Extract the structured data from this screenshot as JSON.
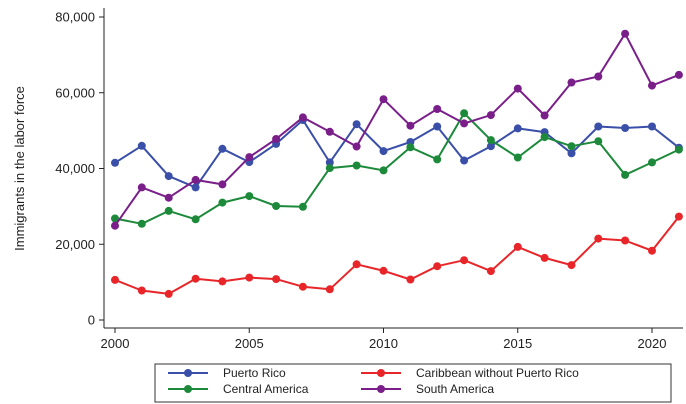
{
  "chart_data": {
    "type": "line",
    "title": "",
    "xlabel": "",
    "ylabel": "Immigrants in the labor force",
    "xlim": [
      2000,
      2021
    ],
    "ylim": [
      0,
      80000
    ],
    "x_ticks": [
      2000,
      2005,
      2010,
      2015,
      2020
    ],
    "x_tick_labels": [
      "2000",
      "2005",
      "2010",
      "2015",
      "2020"
    ],
    "y_ticks": [
      0,
      20000,
      40000,
      60000,
      80000
    ],
    "y_tick_labels": [
      "0",
      "20,000",
      "40,000",
      "60,000",
      "80,000"
    ],
    "grid": false,
    "legend_position": "bottom",
    "x": [
      2000,
      2001,
      2002,
      2003,
      2004,
      2005,
      2006,
      2007,
      2008,
      2009,
      2010,
      2011,
      2012,
      2013,
      2014,
      2015,
      2016,
      2017,
      2018,
      2019,
      2020,
      2021
    ],
    "series": [
      {
        "name": "Puerto Rico",
        "color": "#3a4fa8",
        "values": [
          41500,
          46000,
          38000,
          35000,
          45200,
          41700,
          46500,
          52800,
          41600,
          51700,
          44600,
          47000,
          51100,
          42100,
          45900,
          50600,
          49600,
          44000,
          51100,
          50700,
          51100,
          45500
        ]
      },
      {
        "name": "Caribbean without Puerto Rico",
        "color": "#e8262a",
        "values": [
          10600,
          7800,
          6900,
          10900,
          10200,
          11200,
          10800,
          8800,
          8100,
          14700,
          13000,
          10700,
          14200,
          15800,
          12900,
          19300,
          16400,
          14500,
          21500,
          21000,
          18300,
          27300
        ]
      },
      {
        "name": "Central America",
        "color": "#1c8a3a",
        "values": [
          26800,
          25400,
          28800,
          26600,
          31000,
          32700,
          30100,
          29900,
          40100,
          40800,
          39500,
          45600,
          42400,
          54600,
          47500,
          42900,
          48300,
          45900,
          47200,
          38300,
          41600,
          45000
        ]
      },
      {
        "name": "South America",
        "color": "#7a1f8a",
        "values": [
          24900,
          35000,
          32300,
          37000,
          35800,
          43000,
          47800,
          53500,
          49700,
          45800,
          58300,
          51300,
          55700,
          51900,
          54100,
          61100,
          54000,
          62700,
          64300,
          75600,
          61900,
          64700
        ]
      }
    ],
    "legend_order": [
      "Puerto Rico",
      "Caribbean without Puerto Rico",
      "Central America",
      "South America"
    ]
  }
}
